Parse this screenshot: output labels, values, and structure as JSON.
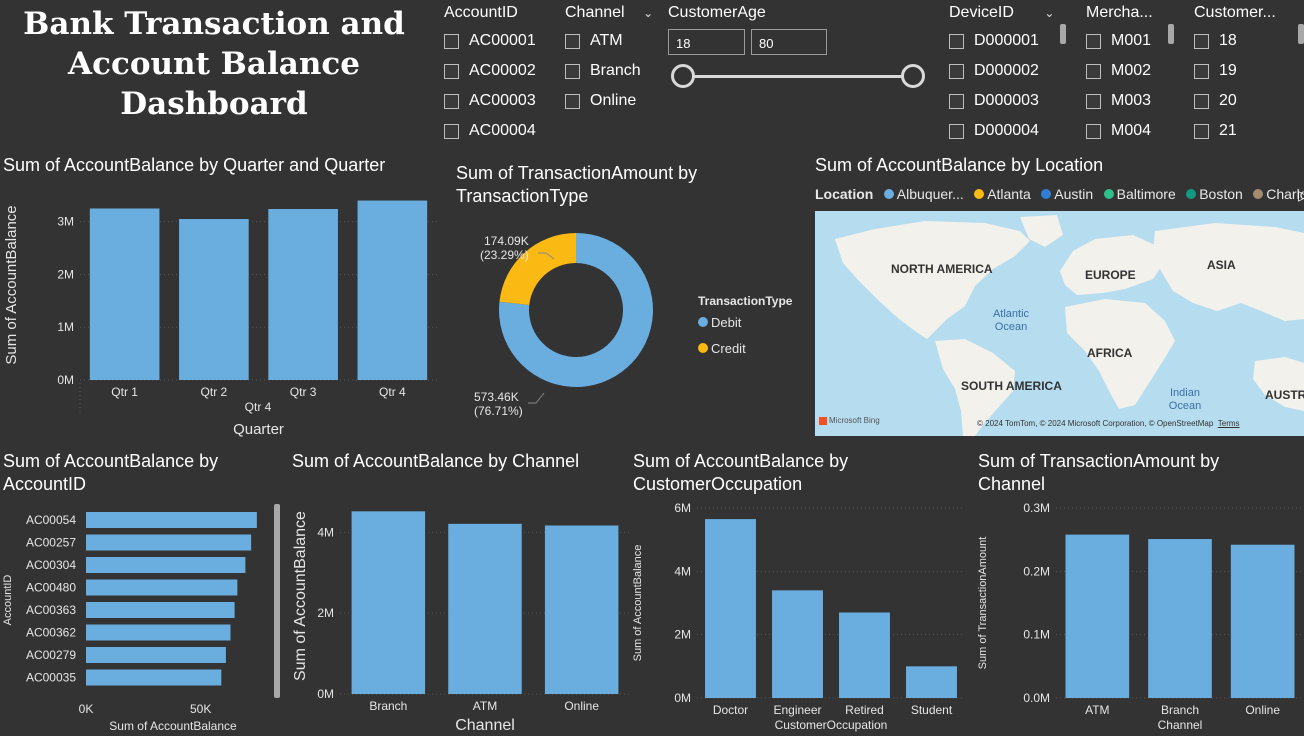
{
  "dashboard_title": "Bank Transaction and Account Balance Dashboard",
  "colors": {
    "bar": "#6aaee0",
    "credit": "#fbb913",
    "background": "#333333",
    "text": "#ffffff"
  },
  "slicers": {
    "account": {
      "header": "AccountID",
      "items": [
        "AC00001",
        "AC00002",
        "AC00003",
        "AC00004"
      ]
    },
    "channel": {
      "header": "Channel",
      "items": [
        "ATM",
        "Branch",
        "Online"
      ]
    },
    "age": {
      "header": "CustomerAge",
      "min": "18",
      "max": "80"
    },
    "device": {
      "header": "DeviceID",
      "items": [
        "D000001",
        "D000002",
        "D000003",
        "D000004"
      ]
    },
    "merchant": {
      "header": "Mercha...",
      "items": [
        "M001",
        "M002",
        "M003",
        "M004"
      ]
    },
    "customer": {
      "header": "Customer...",
      "items": [
        "18",
        "19",
        "20",
        "21"
      ]
    }
  },
  "map": {
    "title": "Sum of AccountBalance by Location",
    "legend_label": "Location",
    "legend": [
      {
        "name": "Albuquer...",
        "color": "#6aaee0"
      },
      {
        "name": "Atlanta",
        "color": "#fbb913"
      },
      {
        "name": "Austin",
        "color": "#2f7fd6"
      },
      {
        "name": "Baltimore",
        "color": "#2fbf8a"
      },
      {
        "name": "Boston",
        "color": "#119a7f"
      },
      {
        "name": "Charlotte",
        "color": "#a58c70"
      }
    ],
    "labels": {
      "na": "NORTH AMERICA",
      "eu": "EUROPE",
      "asia": "ASIA",
      "atlantic": "Atlantic\nOcean",
      "africa": "AFRICA",
      "sa": "SOUTH AMERICA",
      "indian": "Indian\nOcean",
      "aus": "AUSTRAL"
    },
    "bing": "Microsoft Bing",
    "copyright": "© 2024 TomTom, © 2024 Microsoft Corporation, © OpenStreetMap",
    "terms": "Terms"
  },
  "chart_data": [
    {
      "id": "quarter",
      "type": "bar",
      "title": "Sum of AccountBalance by Quarter and Quarter",
      "categories": [
        "Qtr 1",
        "Qtr 2",
        "Qtr 3",
        "Qtr 4"
      ],
      "group_label": "Qtr 4",
      "values": [
        3250000,
        3050000,
        3240000,
        3400000
      ],
      "xlabel": "Quarter",
      "ylabel": "Sum of AccountBalance",
      "yticks": [
        "0M",
        "1M",
        "2M",
        "3M"
      ],
      "ytick_values": [
        0,
        1000000,
        2000000,
        3000000
      ],
      "ylim": [
        0,
        3600000
      ]
    },
    {
      "id": "donut",
      "type": "pie",
      "title": "Sum of TransactionAmount by TransactionType",
      "legend_title": "TransactionType",
      "slices": [
        {
          "name": "Debit",
          "value": 573460,
          "label": "573.46K",
          "pct": "(76.71%)",
          "color": "#6aaee0"
        },
        {
          "name": "Credit",
          "value": 174090,
          "label": "174.09K",
          "pct": "(23.29%)",
          "color": "#fbb913"
        }
      ]
    },
    {
      "id": "account",
      "type": "bar",
      "orientation": "horizontal",
      "title": "Sum of AccountBalance by AccountID",
      "categories": [
        "AC00054",
        "AC00257",
        "AC00304",
        "AC00480",
        "AC00363",
        "AC00362",
        "AC00279",
        "AC00035"
      ],
      "values": [
        74500,
        72000,
        69500,
        66000,
        64800,
        63000,
        61000,
        59000
      ],
      "xlabel": "Sum of AccountBalance",
      "ylabel": "AccountID",
      "xticks": [
        "0K",
        "50K"
      ],
      "xtick_values": [
        0,
        50000
      ],
      "xlim": [
        0,
        75000
      ]
    },
    {
      "id": "channel",
      "type": "bar",
      "title": "Sum of AccountBalance by Channel",
      "categories": [
        "Branch",
        "ATM",
        "Online"
      ],
      "values": [
        4520000,
        4210000,
        4170000
      ],
      "xlabel": "Channel",
      "ylabel": "Sum of AccountBalance",
      "yticks": [
        "0M",
        "2M",
        "4M"
      ],
      "ytick_values": [
        0,
        2000000,
        4000000
      ],
      "ylim": [
        0,
        4850000
      ]
    },
    {
      "id": "occupation",
      "type": "bar",
      "title": "Sum of AccountBalance by CustomerOccupation",
      "categories": [
        "Doctor",
        "Engineer",
        "Retired",
        "Student"
      ],
      "values": [
        5650000,
        3400000,
        2700000,
        1000000
      ],
      "xlabel": "CustomerOccupation",
      "ylabel": "Sum of AccountBalance",
      "yticks": [
        "0M",
        "2M",
        "4M",
        "6M"
      ],
      "ytick_values": [
        0,
        2000000,
        4000000,
        6000000
      ],
      "ylim": [
        0,
        6000000
      ]
    },
    {
      "id": "txn",
      "type": "bar",
      "title": "Sum of TransactionAmount by Channel",
      "categories": [
        "ATM",
        "Branch",
        "Online"
      ],
      "values": [
        258000,
        251000,
        242000
      ],
      "xlabel": "Channel",
      "ylabel": "Sum of TransactionAmount",
      "yticks": [
        "0.0M",
        "0.1M",
        "0.2M",
        "0.3M"
      ],
      "ytick_values": [
        0,
        100000,
        200000,
        300000
      ],
      "ylim": [
        0,
        300000
      ]
    }
  ]
}
